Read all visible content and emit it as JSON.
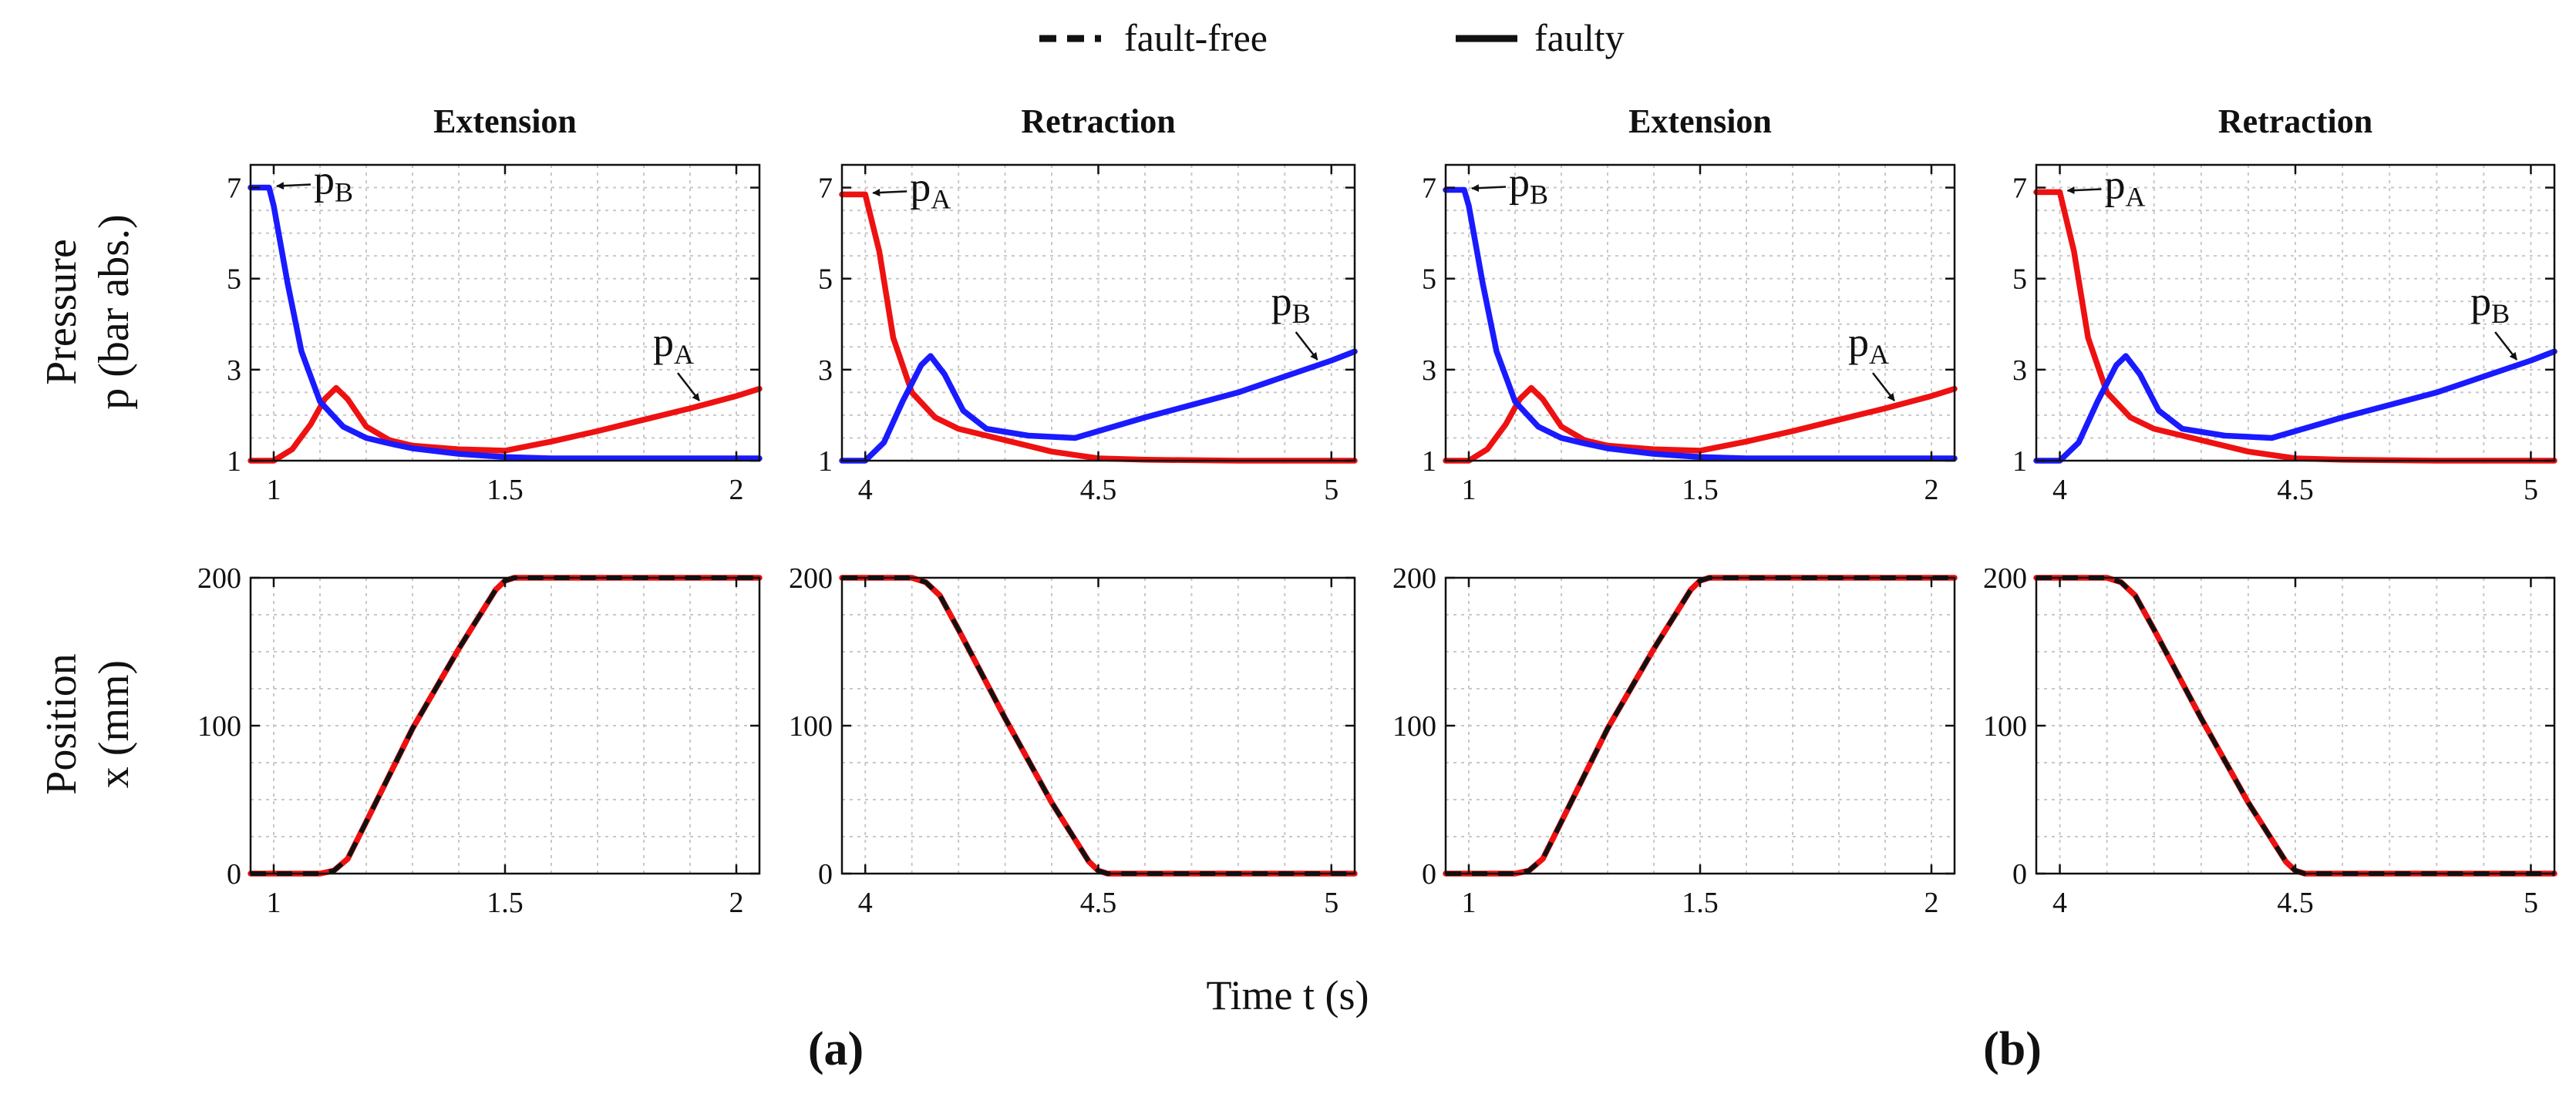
{
  "legend": {
    "fault_free_label": "fault-free",
    "faulty_label": "faulty"
  },
  "ylabel_top": [
    "Pressure",
    "p (bar abs.)"
  ],
  "ylabel_bottom": [
    "Position",
    "x (mm)"
  ],
  "xlabel": "Time t (s)",
  "panel_tags": [
    "(a)",
    "(b)"
  ],
  "colors": {
    "pA": "#ee1111",
    "pB": "#1a1aff",
    "fault_free": "#111111",
    "faulty": "#111111"
  },
  "chart_data": [
    {
      "type": "line",
      "group": "(a)",
      "title": "Extension",
      "ylabel": "p (bar abs.)",
      "xlim": [
        0.95,
        2.05
      ],
      "ylim": [
        1,
        7.5
      ],
      "xticks": [
        1,
        1.5,
        2
      ],
      "xticklabels": [
        "1",
        "1.5",
        "2"
      ],
      "yticks": [
        1,
        3,
        5,
        7
      ],
      "yticklabels": [
        "1",
        "3",
        "5",
        "7"
      ],
      "grid": true,
      "series": [
        {
          "name": "pA",
          "color": "#ee1111",
          "x": [
            0.95,
            1.0,
            1.04,
            1.08,
            1.11,
            1.135,
            1.16,
            1.2,
            1.25,
            1.3,
            1.4,
            1.5,
            1.6,
            1.7,
            1.8,
            1.9,
            2.0,
            2.05
          ],
          "y": [
            1.0,
            1.0,
            1.25,
            1.8,
            2.35,
            2.6,
            2.35,
            1.75,
            1.45,
            1.33,
            1.25,
            1.22,
            1.42,
            1.65,
            1.9,
            2.15,
            2.42,
            2.58
          ]
        },
        {
          "name": "pB",
          "color": "#1a1aff",
          "x": [
            0.95,
            0.99,
            1.0,
            1.03,
            1.06,
            1.1,
            1.15,
            1.2,
            1.25,
            1.3,
            1.4,
            1.5,
            1.6,
            1.8,
            2.0,
            2.05
          ],
          "y": [
            7.0,
            7.0,
            6.6,
            4.9,
            3.4,
            2.3,
            1.75,
            1.5,
            1.38,
            1.27,
            1.15,
            1.08,
            1.05,
            1.05,
            1.05,
            1.05
          ]
        }
      ],
      "annotations": [
        {
          "label": "p",
          "sub": "B",
          "series": "pB",
          "at": [
            0.99,
            7.0
          ]
        },
        {
          "label": "p",
          "sub": "A",
          "series": "pA",
          "at": [
            1.92,
            2.25
          ]
        }
      ]
    },
    {
      "type": "line",
      "group": "(a)",
      "title": "Retraction",
      "ylabel": "p (bar abs.)",
      "xlim": [
        3.95,
        5.05
      ],
      "ylim": [
        1,
        7.5
      ],
      "xticks": [
        4,
        4.5,
        5
      ],
      "xticklabels": [
        "4",
        "4.5",
        "5"
      ],
      "yticks": [
        1,
        3,
        5,
        7
      ],
      "yticklabels": [
        "1",
        "3",
        "5",
        "7"
      ],
      "grid": true,
      "series": [
        {
          "name": "pA",
          "color": "#ee1111",
          "x": [
            3.95,
            4.0,
            4.03,
            4.06,
            4.1,
            4.15,
            4.2,
            4.3,
            4.4,
            4.5,
            4.6,
            4.8,
            5.05
          ],
          "y": [
            6.85,
            6.85,
            5.6,
            3.7,
            2.5,
            1.95,
            1.7,
            1.45,
            1.2,
            1.05,
            1.02,
            1.0,
            1.0
          ],
          "y_note": "monotonic decay"
        },
        {
          "name": "pB",
          "color": "#1a1aff",
          "x": [
            3.95,
            4.0,
            4.04,
            4.08,
            4.12,
            4.14,
            4.17,
            4.21,
            4.26,
            4.35,
            4.45,
            4.6,
            4.8,
            5.0,
            5.05
          ],
          "y": [
            1.0,
            1.0,
            1.4,
            2.3,
            3.1,
            3.3,
            2.9,
            2.1,
            1.7,
            1.55,
            1.5,
            1.95,
            2.5,
            3.2,
            3.4
          ]
        }
      ],
      "annotations": [
        {
          "label": "p",
          "sub": "A",
          "series": "pA",
          "at": [
            4.0,
            6.85
          ]
        },
        {
          "label": "p",
          "sub": "B",
          "series": "pB",
          "at": [
            4.97,
            3.15
          ]
        }
      ]
    },
    {
      "type": "line",
      "group": "(b)",
      "title": "Extension",
      "ylabel": "p (bar abs.)",
      "xlim": [
        0.95,
        2.05
      ],
      "ylim": [
        1,
        7.5
      ],
      "xticks": [
        1,
        1.5,
        2
      ],
      "xticklabels": [
        "1",
        "1.5",
        "2"
      ],
      "yticks": [
        1,
        3,
        5,
        7
      ],
      "yticklabels": [
        "1",
        "3",
        "5",
        "7"
      ],
      "grid": true,
      "series": [
        {
          "name": "pA",
          "color": "#ee1111",
          "x": [
            0.95,
            1.0,
            1.04,
            1.08,
            1.11,
            1.135,
            1.16,
            1.2,
            1.25,
            1.3,
            1.4,
            1.5,
            1.6,
            1.7,
            1.8,
            1.9,
            2.0,
            2.05
          ],
          "y": [
            1.0,
            1.0,
            1.25,
            1.8,
            2.35,
            2.6,
            2.35,
            1.75,
            1.45,
            1.33,
            1.25,
            1.22,
            1.42,
            1.65,
            1.9,
            2.15,
            2.42,
            2.58
          ]
        },
        {
          "name": "pB",
          "color": "#1a1aff",
          "x": [
            0.95,
            0.99,
            1.0,
            1.03,
            1.06,
            1.1,
            1.15,
            1.2,
            1.25,
            1.3,
            1.4,
            1.5,
            1.6,
            1.8,
            2.0,
            2.05
          ],
          "y": [
            6.95,
            6.95,
            6.6,
            4.9,
            3.4,
            2.3,
            1.75,
            1.5,
            1.38,
            1.27,
            1.15,
            1.08,
            1.05,
            1.05,
            1.05,
            1.05
          ]
        }
      ],
      "annotations": [
        {
          "label": "p",
          "sub": "B",
          "series": "pB",
          "at": [
            0.99,
            6.95
          ]
        },
        {
          "label": "p",
          "sub": "A",
          "series": "pA",
          "at": [
            1.92,
            2.25
          ]
        }
      ]
    },
    {
      "type": "line",
      "group": "(b)",
      "title": "Retraction",
      "ylabel": "p (bar abs.)",
      "xlim": [
        3.95,
        5.05
      ],
      "ylim": [
        1,
        7.5
      ],
      "xticks": [
        4,
        4.5,
        5
      ],
      "xticklabels": [
        "4",
        "4.5",
        "5"
      ],
      "yticks": [
        1,
        3,
        5,
        7
      ],
      "yticklabels": [
        "1",
        "3",
        "5",
        "7"
      ],
      "grid": true,
      "series": [
        {
          "name": "pA",
          "color": "#ee1111",
          "x": [
            3.95,
            4.0,
            4.03,
            4.06,
            4.1,
            4.15,
            4.2,
            4.3,
            4.4,
            4.5,
            4.6,
            4.8,
            5.05
          ],
          "y": [
            6.9,
            6.9,
            5.6,
            3.7,
            2.5,
            1.95,
            1.7,
            1.45,
            1.2,
            1.05,
            1.02,
            1.0,
            1.0
          ]
        },
        {
          "name": "pB",
          "color": "#1a1aff",
          "x": [
            3.95,
            4.0,
            4.04,
            4.08,
            4.12,
            4.14,
            4.17,
            4.21,
            4.26,
            4.35,
            4.45,
            4.6,
            4.8,
            5.0,
            5.05
          ],
          "y": [
            1.0,
            1.0,
            1.4,
            2.3,
            3.1,
            3.3,
            2.9,
            2.1,
            1.7,
            1.55,
            1.5,
            1.95,
            2.5,
            3.2,
            3.4
          ]
        }
      ],
      "annotations": [
        {
          "label": "p",
          "sub": "A",
          "series": "pA",
          "at": [
            4.0,
            6.9
          ]
        },
        {
          "label": "p",
          "sub": "B",
          "series": "pB",
          "at": [
            4.97,
            3.15
          ]
        }
      ]
    },
    {
      "type": "line",
      "group": "(a)",
      "title": "",
      "ylabel": "x (mm)",
      "xlim": [
        0.95,
        2.05
      ],
      "ylim": [
        0,
        200
      ],
      "xticks": [
        1,
        1.5,
        2
      ],
      "xticklabels": [
        "1",
        "1.5",
        "2"
      ],
      "yticks": [
        0,
        100,
        200
      ],
      "yticklabels": [
        "0",
        "100",
        "200"
      ],
      "grid": true,
      "series": [
        {
          "name": "faulty",
          "color": "#ee1111",
          "style": "solid",
          "x": [
            0.95,
            1.1,
            1.13,
            1.16,
            1.2,
            1.3,
            1.4,
            1.48,
            1.5,
            1.52,
            2.05
          ],
          "y": [
            0,
            0,
            2,
            10,
            35,
            98,
            152,
            192,
            198,
            200,
            200
          ]
        },
        {
          "name": "fault-free",
          "color": "#111111",
          "style": "dashed",
          "x": [
            0.95,
            1.1,
            1.13,
            1.16,
            1.2,
            1.3,
            1.4,
            1.48,
            1.5,
            1.52,
            2.05
          ],
          "y": [
            0,
            0,
            2,
            10,
            35,
            98,
            152,
            192,
            198,
            200,
            200
          ]
        }
      ]
    },
    {
      "type": "line",
      "group": "(a)",
      "title": "",
      "ylabel": "x (mm)",
      "xlim": [
        3.95,
        5.05
      ],
      "ylim": [
        0,
        200
      ],
      "xticks": [
        4,
        4.5,
        5
      ],
      "xticklabels": [
        "4",
        "4.5",
        "5"
      ],
      "yticks": [
        0,
        100,
        200
      ],
      "yticklabels": [
        "0",
        "100",
        "200"
      ],
      "grid": true,
      "series": [
        {
          "name": "faulty",
          "color": "#ee1111",
          "style": "solid",
          "x": [
            3.95,
            4.1,
            4.13,
            4.16,
            4.2,
            4.3,
            4.4,
            4.48,
            4.5,
            4.52,
            5.05
          ],
          "y": [
            200,
            200,
            197,
            188,
            165,
            105,
            48,
            8,
            2,
            0,
            0
          ]
        },
        {
          "name": "fault-free",
          "color": "#111111",
          "style": "dashed",
          "x": [
            3.95,
            4.1,
            4.13,
            4.16,
            4.2,
            4.3,
            4.4,
            4.48,
            4.5,
            4.52,
            5.05
          ],
          "y": [
            200,
            200,
            197,
            188,
            165,
            105,
            48,
            8,
            2,
            0,
            0
          ]
        }
      ]
    },
    {
      "type": "line",
      "group": "(b)",
      "title": "",
      "ylabel": "x (mm)",
      "xlim": [
        0.95,
        2.05
      ],
      "ylim": [
        0,
        200
      ],
      "xticks": [
        1,
        1.5,
        2
      ],
      "xticklabels": [
        "1",
        "1.5",
        "2"
      ],
      "yticks": [
        0,
        100,
        200
      ],
      "yticklabels": [
        "0",
        "100",
        "200"
      ],
      "grid": true,
      "series": [
        {
          "name": "faulty",
          "color": "#ee1111",
          "style": "solid",
          "x": [
            0.95,
            1.1,
            1.13,
            1.16,
            1.2,
            1.3,
            1.4,
            1.48,
            1.5,
            1.52,
            2.05
          ],
          "y": [
            0,
            0,
            2,
            10,
            35,
            98,
            152,
            192,
            198,
            200,
            200
          ]
        },
        {
          "name": "fault-free",
          "color": "#111111",
          "style": "dashed",
          "x": [
            0.95,
            1.1,
            1.13,
            1.16,
            1.2,
            1.3,
            1.4,
            1.48,
            1.5,
            1.52,
            2.05
          ],
          "y": [
            0,
            0,
            2,
            10,
            35,
            98,
            152,
            192,
            198,
            200,
            200
          ]
        }
      ]
    },
    {
      "type": "line",
      "group": "(b)",
      "title": "",
      "ylabel": "x (mm)",
      "xlim": [
        3.95,
        5.05
      ],
      "ylim": [
        0,
        200
      ],
      "xticks": [
        4,
        4.5,
        5
      ],
      "xticklabels": [
        "4",
        "4.5",
        "5"
      ],
      "yticks": [
        0,
        100,
        200
      ],
      "yticklabels": [
        "0",
        "100",
        "200"
      ],
      "grid": true,
      "series": [
        {
          "name": "faulty",
          "color": "#ee1111",
          "style": "solid",
          "x": [
            3.95,
            4.1,
            4.13,
            4.16,
            4.2,
            4.3,
            4.4,
            4.48,
            4.5,
            4.52,
            5.05
          ],
          "y": [
            200,
            200,
            197,
            188,
            165,
            105,
            48,
            8,
            2,
            0,
            0
          ]
        },
        {
          "name": "fault-free",
          "color": "#111111",
          "style": "dashed",
          "x": [
            3.95,
            4.1,
            4.13,
            4.16,
            4.2,
            4.3,
            4.4,
            4.48,
            4.5,
            4.52,
            5.05
          ],
          "y": [
            200,
            200,
            197,
            188,
            165,
            105,
            48,
            8,
            2,
            0,
            0
          ]
        }
      ]
    }
  ]
}
